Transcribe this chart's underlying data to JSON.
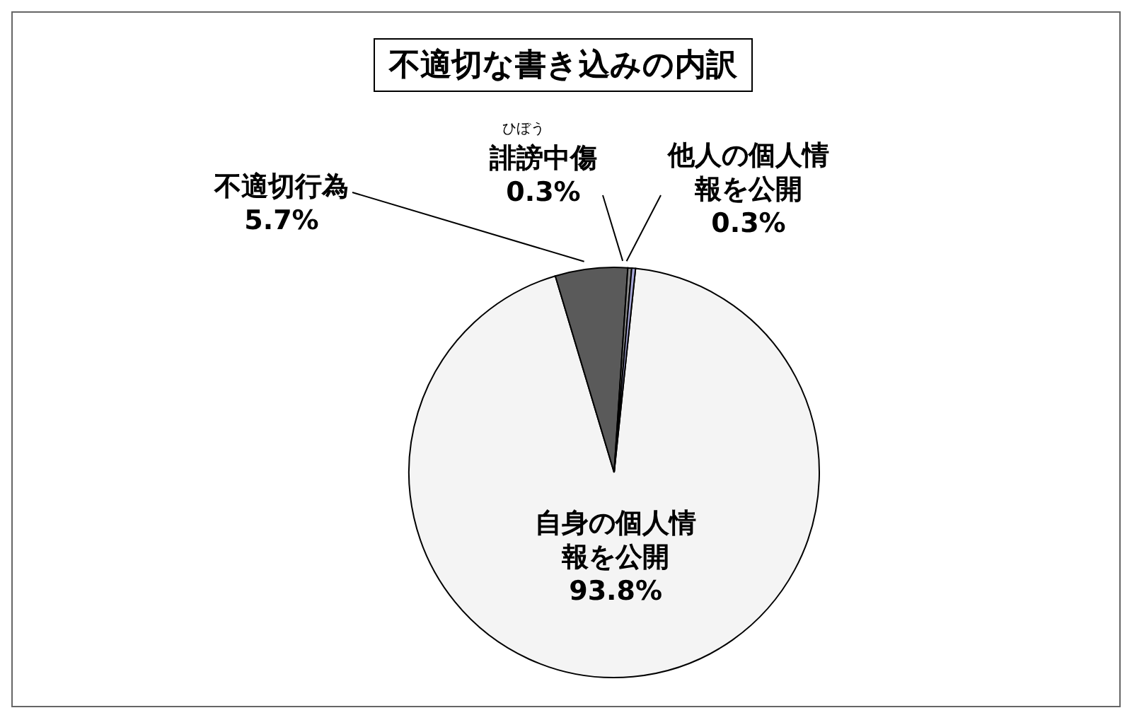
{
  "chart_data": {
    "type": "pie",
    "title": "不適切な書き込みの内訳",
    "categories": [
      "自身の個人情報を公開",
      "不適切行為",
      "誹謗中傷",
      "他人の個人情報を公開"
    ],
    "values": [
      93.8,
      5.7,
      0.3,
      0.3
    ],
    "colors": [
      "#f4f4f4",
      "#5a5a5a",
      "#8a8a8a",
      "#a8a8d8"
    ],
    "value_labels": [
      "93.8%",
      "5.7%",
      "0.3%",
      "0.3%"
    ],
    "annotations": [
      "ひぼう"
    ]
  }
}
